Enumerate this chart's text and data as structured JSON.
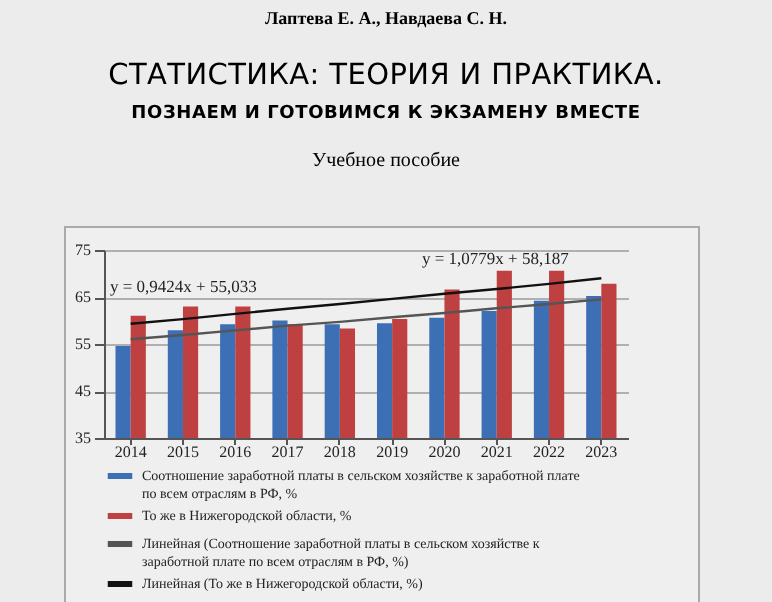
{
  "chart_data": {
    "type": "bar",
    "title": "СТАТИСТИКА: ТЕОРИЯ И ПРАКТИКА.",
    "subtitle": "ПОЗНАЕМ И ГОТОВИМСЯ К ЭКЗАМЕНУ ВМЕСТЕ",
    "annotations": [
      "Лаптева Е. А., Навдаева С. Н.",
      "Учебное пособие",
      "y = 0,9424x + 55,033",
      "y = 1,0779x + 58,187"
    ],
    "categories": [
      "2014",
      "2015",
      "2016",
      "2017",
      "2018",
      "2019",
      "2020",
      "2021",
      "2022",
      "2023"
    ],
    "series": [
      {
        "name": "Соотношение заработной платы в сельском хозяйстве к заработной плате по всем отраслям в РФ, %",
        "color": "#3d6fb5",
        "values": [
          54.6,
          57.9,
          59.2,
          60.0,
          59.2,
          59.4,
          60.6,
          62.0,
          64.2,
          65.2
        ]
      },
      {
        "name": "То же в Нижегородской области, %",
        "color": "#be4040",
        "values": [
          61.0,
          63.0,
          63.0,
          59.2,
          58.3,
          60.3,
          66.6,
          70.6,
          70.6,
          67.8
        ]
      },
      {
        "name": "Линейная (Соотношение заработной платы в сельском хозяйстве к заработной плате по всем отраслям в РФ, %)",
        "type": "line",
        "color": "#555555",
        "values": [
          56.0,
          56.9,
          57.9,
          58.9,
          59.7,
          60.7,
          61.6,
          62.6,
          63.5,
          64.5
        ]
      },
      {
        "name": "Линейная (То же в Нижегородской области, %)",
        "type": "line",
        "color": "#111111",
        "values": [
          59.3,
          60.3,
          61.4,
          62.5,
          63.5,
          64.6,
          65.7,
          66.7,
          67.8,
          69.0
        ]
      }
    ],
    "ylim": [
      35,
      75
    ],
    "yticks": [
      35,
      45,
      55,
      65,
      75
    ],
    "grid": "y",
    "legend": "bottom"
  }
}
